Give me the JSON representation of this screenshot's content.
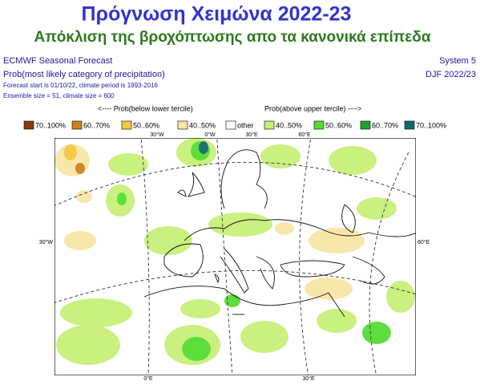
{
  "header": {
    "title": "Πρόγνωση Χειμώνα 2022-23",
    "subtitle": "Απόκλιση της βροχόπτωσης απο τα κανονικά επίπεδα"
  },
  "info": {
    "left": [
      "ECMWF Seasonal Forecast",
      "Prob(most likely category of precipitation)",
      "Forecast start is 01/10/22, climate period is 1993-2016",
      "Ensemble size = 51, climate size = 600"
    ],
    "right": [
      "System 5",
      "DJF 2022/23"
    ]
  },
  "legend": {
    "below_label": "<---- Prob(below lower tercile)",
    "above_label": "Prob(above upper tercile) ---->",
    "items": [
      {
        "label": "70..100%",
        "color": "#8b3a0e"
      },
      {
        "label": "60..70%",
        "color": "#d2801f"
      },
      {
        "label": "50..60%",
        "color": "#f5c842"
      },
      {
        "label": "40..50%",
        "color": "#f8e6a6"
      },
      {
        "label": "other",
        "color": "#ffffff"
      },
      {
        "label": "40..50%",
        "color": "#c8f07a"
      },
      {
        "label": "50..60%",
        "color": "#55dd33"
      },
      {
        "label": "60..70%",
        "color": "#20a030"
      },
      {
        "label": "70..100%",
        "color": "#106a6a"
      }
    ]
  },
  "map": {
    "grid_labels": [
      "30°W",
      "0°W",
      "30°E",
      "60°E",
      "30°W",
      "60°E",
      "0°E",
      "30°E"
    ]
  }
}
